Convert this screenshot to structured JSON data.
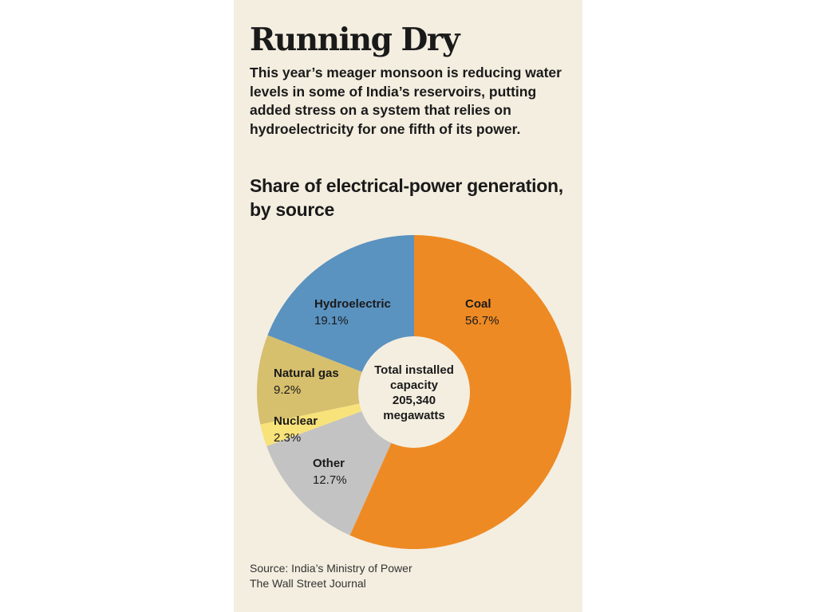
{
  "headline": "Running Dry",
  "deck": "This year’s meager monsoon is reducing water levels in some of India’s reservoirs, putting added stress on a system that relies on hydroelectricity for one fifth of its power.",
  "colors": {
    "background": "#f4eee0",
    "coal": "#ee8a24",
    "hydroelectric": "#5a92c0",
    "natural_gas": "#d6bf6d",
    "nuclear": "#f8e27a",
    "other": "#c3c3c3",
    "center": "#f4eee0"
  },
  "chart_data": {
    "type": "pie",
    "donut": true,
    "title": "Share of electrical-power generation, by source",
    "center_label": [
      "Total installed",
      "capacity",
      "205,340",
      "megawatts"
    ],
    "categories": [
      "Coal",
      "Other",
      "Nuclear",
      "Natural gas",
      "Hydroelectric"
    ],
    "values": [
      56.7,
      12.7,
      2.3,
      9.2,
      19.1
    ],
    "value_labels": [
      "56.7%",
      "12.7%",
      "2.3%",
      "9.2%",
      "19.1%"
    ],
    "slice_colors": [
      "#ee8a24",
      "#c3c3c3",
      "#f8e27a",
      "#d6bf6d",
      "#5a92c0"
    ],
    "start_angle_deg": 0,
    "direction": "clockwise"
  },
  "source": {
    "line1": "Source: India’s Ministry of Power",
    "line2": "The Wall Street Journal"
  }
}
